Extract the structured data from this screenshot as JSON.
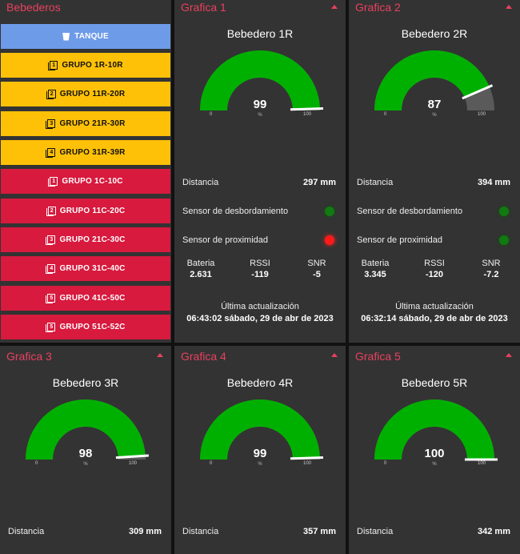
{
  "colors": {
    "accent": "#e8415f",
    "gauge_fill": "#00b000",
    "gauge_bg": "#5a5a5a",
    "button_blue": "#6d9be8",
    "button_yellow": "#ffc107",
    "button_red": "#d71a3e",
    "panel": "#333333"
  },
  "sidebar": {
    "title": "Bebederos",
    "buttons": [
      {
        "label": "TANQUE",
        "icon": "cup-icon",
        "color": "blue"
      },
      {
        "label": "GRUPO 1R-10R",
        "icon": "filter-1-icon",
        "num": "1",
        "color": "yellow"
      },
      {
        "label": "GRUPO 11R-20R",
        "icon": "filter-2-icon",
        "num": "2",
        "color": "yellow"
      },
      {
        "label": "GRUPO 21R-30R",
        "icon": "filter-3-icon",
        "num": "3",
        "color": "yellow"
      },
      {
        "label": "GRUPO 31R-39R",
        "icon": "filter-4-icon",
        "num": "4",
        "color": "yellow"
      },
      {
        "label": "GRUPO 1C-10C",
        "icon": "filter-1-icon",
        "num": "1",
        "color": "red"
      },
      {
        "label": "GRUPO 11C-20C",
        "icon": "filter-2-icon",
        "num": "2",
        "color": "red"
      },
      {
        "label": "GRUPO 21C-30C",
        "icon": "filter-3-icon",
        "num": "3",
        "color": "red"
      },
      {
        "label": "GRUPO 31C-40C",
        "icon": "filter-4-icon",
        "num": "4",
        "color": "red"
      },
      {
        "label": "GRUPO 41C-50C",
        "icon": "filter-5-icon",
        "num": "5",
        "color": "red"
      },
      {
        "label": "GRUPO 51C-52C",
        "icon": "filter-5-icon",
        "num": "5",
        "color": "red"
      }
    ]
  },
  "panels": [
    {
      "title": "Grafica 1",
      "name": "Bebedero 1R",
      "gauge": {
        "value": 99,
        "unit": "%",
        "min": 0,
        "max": 100
      },
      "distance_label": "Distancia",
      "distance": "297 mm",
      "overflow_label": "Sensor de desbordamiento",
      "overflow_led": "green",
      "proximity_label": "Sensor de proximidad",
      "proximity_led": "red",
      "battery_label": "Bateria",
      "battery": "2.631",
      "rssi_label": "RSSI",
      "rssi": "-119",
      "snr_label": "SNR",
      "snr": "-5",
      "updated_label": "Última actualización",
      "updated": "06:43:02 sábado, 29 de abr de 2023"
    },
    {
      "title": "Grafica 2",
      "name": "Bebedero 2R",
      "gauge": {
        "value": 87,
        "unit": "%",
        "min": 0,
        "max": 100
      },
      "distance_label": "Distancia",
      "distance": "394 mm",
      "overflow_label": "Sensor de desbordamiento",
      "overflow_led": "green",
      "proximity_label": "Sensor de proximidad",
      "proximity_led": "green",
      "battery_label": "Bateria",
      "battery": "3.345",
      "rssi_label": "RSSI",
      "rssi": "-120",
      "snr_label": "SNR",
      "snr": "-7.2",
      "updated_label": "Última actualización",
      "updated": "06:32:14 sábado, 29 de abr de 2023"
    },
    {
      "title": "Grafica 3",
      "name": "Bebedero 3R",
      "gauge": {
        "value": 98,
        "unit": "%",
        "min": 0,
        "max": 100
      },
      "distance_label": "Distancia",
      "distance": "309 mm"
    },
    {
      "title": "Grafica 4",
      "name": "Bebedero 4R",
      "gauge": {
        "value": 99,
        "unit": "%",
        "min": 0,
        "max": 100
      },
      "distance_label": "Distancia",
      "distance": "357 mm"
    },
    {
      "title": "Grafica 5",
      "name": "Bebedero 5R",
      "gauge": {
        "value": 100,
        "unit": "%",
        "min": 0,
        "max": 100
      },
      "distance_label": "Distancia",
      "distance": "342 mm"
    }
  ]
}
